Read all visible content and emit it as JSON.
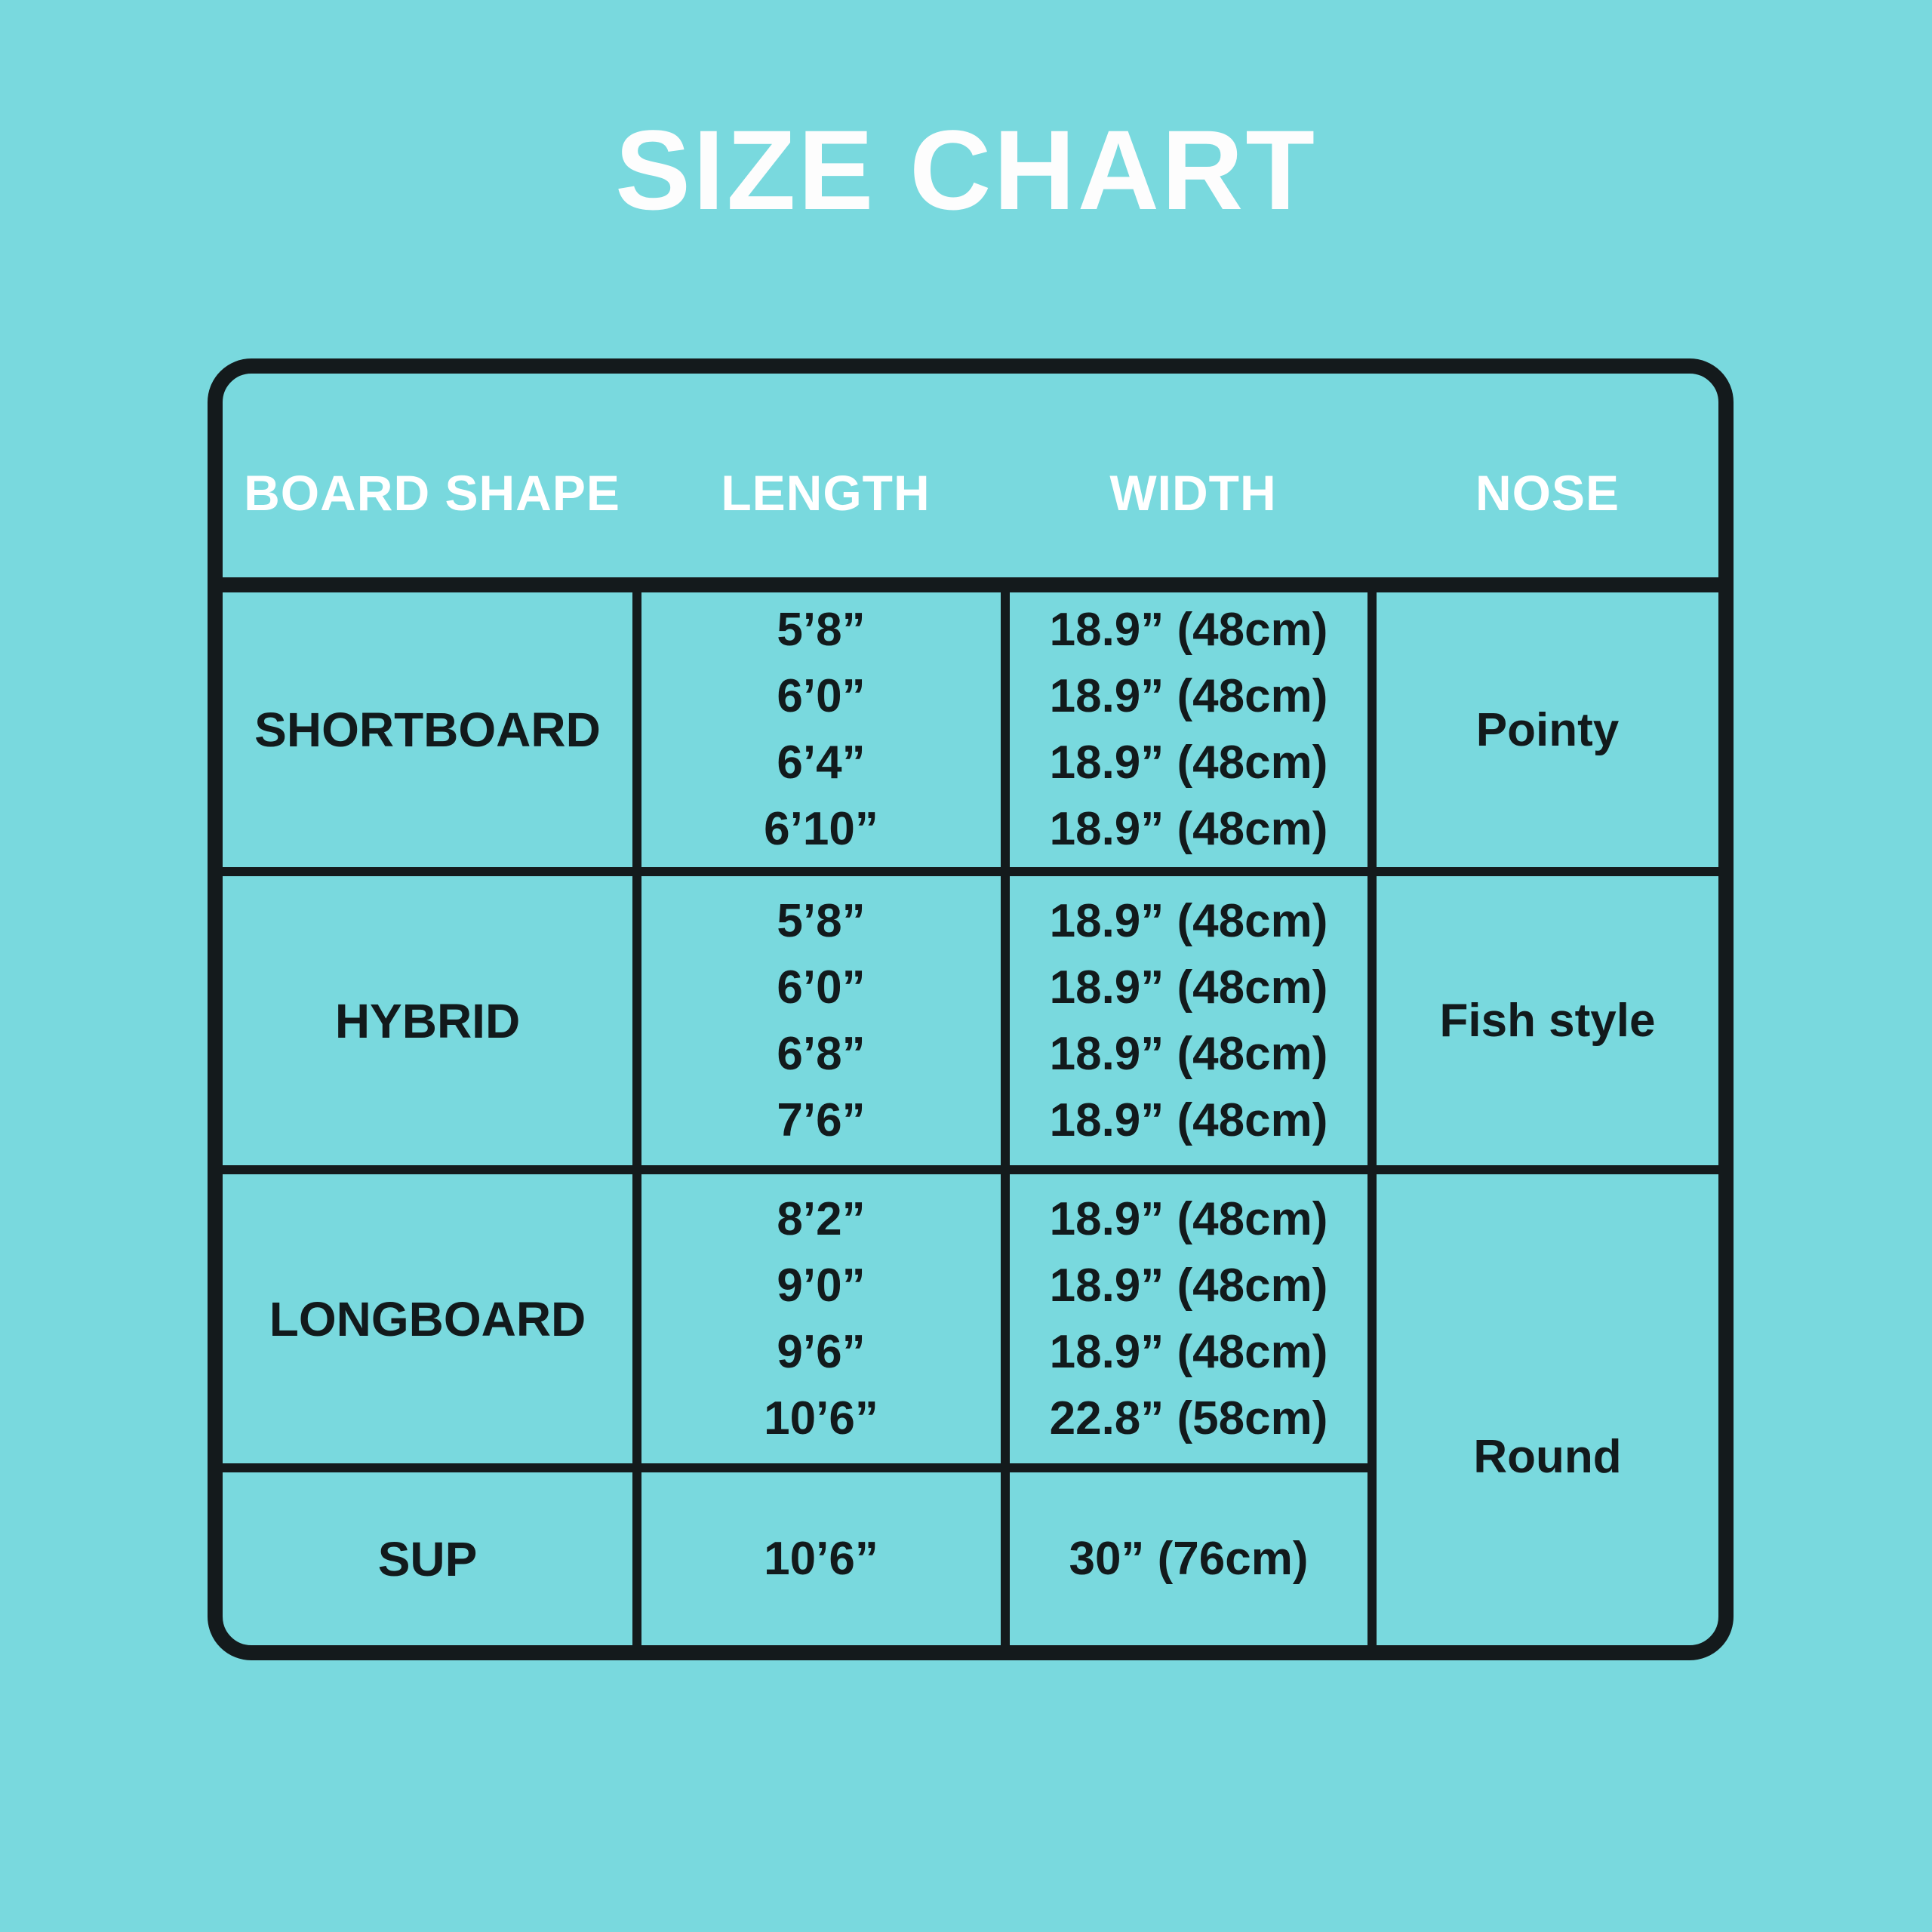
{
  "title": "SIZE CHART",
  "colors": {
    "background": "#79d9de",
    "table_background": "#79d9de",
    "line": "#141a1c",
    "header_text": "#ffffff",
    "body_text": "#121a1c"
  },
  "chart_data": {
    "type": "table",
    "title": "SIZE CHART",
    "columns": [
      "BOARD SHAPE",
      "LENGTH",
      "WIDTH",
      "NOSE"
    ],
    "rows": [
      {
        "shape": "SHORTBOARD",
        "lengths": [
          "5’8”",
          "6’0”",
          "6’4”",
          "6’10”"
        ],
        "widths": [
          "18.9” (48cm)",
          "18.9” (48cm)",
          "18.9” (48cm)",
          "18.9” (48cm)"
        ],
        "nose": "Pointy"
      },
      {
        "shape": "HYBRID",
        "lengths": [
          "5’8”",
          "6’0”",
          "6’8”",
          "7’6”"
        ],
        "widths": [
          "18.9” (48cm)",
          "18.9” (48cm)",
          "18.9” (48cm)",
          "18.9” (48cm)"
        ],
        "nose": "Fish style"
      },
      {
        "shape": "LONGBOARD",
        "lengths": [
          "8’2”",
          "9’0”",
          "9’6”",
          "10’6”"
        ],
        "widths": [
          "18.9” (48cm)",
          "18.9” (48cm)",
          "18.9” (48cm)",
          "22.8” (58cm)"
        ],
        "nose": "Round",
        "nose_merged_with_next_row": true
      },
      {
        "shape": "SUP",
        "lengths": [
          "10’6”"
        ],
        "widths": [
          "30” (76cm)"
        ],
        "nose": "Round"
      }
    ],
    "layout": {
      "merged_nose_cell_rows": [
        "LONGBOARD",
        "SUP"
      ],
      "grid_on": true,
      "legend_position": "none"
    }
  }
}
